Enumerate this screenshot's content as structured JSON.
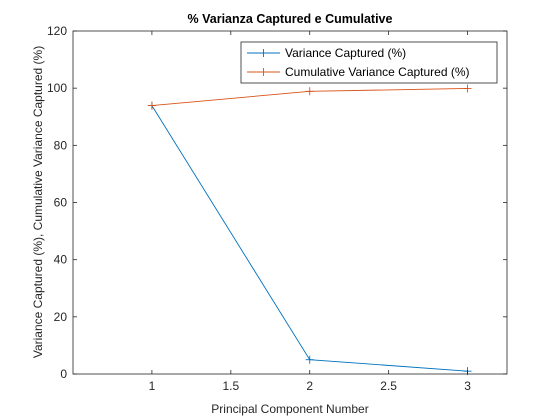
{
  "chart_data": {
    "type": "line",
    "title": "% Varianza Captured e Cumulative",
    "xlabel": "Principal Component Number",
    "ylabel": "Variance Captured (%), Cumulative Variance Captured (%)",
    "xlim": [
      0.5,
      3.25
    ],
    "ylim": [
      0,
      120
    ],
    "x_ticks": [
      "1",
      "1.5",
      "2",
      "2.5",
      "3"
    ],
    "y_ticks": [
      "0",
      "20",
      "40",
      "60",
      "80",
      "100",
      "120"
    ],
    "x": [
      1,
      2,
      3
    ],
    "series": [
      {
        "name": "Variance Captured (%)",
        "values": [
          93.9,
          5.0,
          1.0
        ],
        "color": "#0072BD",
        "marker": "plus"
      },
      {
        "name": "Cumulative Variance Captured (%)",
        "values": [
          93.9,
          98.9,
          99.9
        ],
        "color": "#D95319",
        "marker": "plus"
      }
    ],
    "grid": false,
    "legend_position": "top-right"
  }
}
